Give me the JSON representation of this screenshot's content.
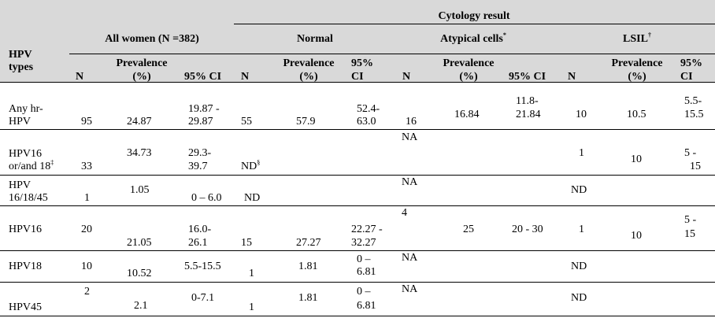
{
  "table": {
    "cytology_header": "Cytology result",
    "row_header": [
      "HPV",
      "types"
    ],
    "groups": {
      "all": "All women (N =382)",
      "normal": "Normal",
      "atypical": "Atypical cells",
      "atypical_mark": "*",
      "lsil": "LSIL",
      "lsil_mark": "†"
    },
    "cols": {
      "n": "N",
      "prev1": "Prevalence",
      "prev2": "(%)",
      "ci_full": "95% CI",
      "ci1": "95%",
      "ci2": "CI"
    },
    "rows": [
      {
        "type": [
          "Any hr-",
          "HPV"
        ],
        "all_n": "95",
        "all_prev": "24.87",
        "all_ci": [
          "19.87 -",
          "29.87"
        ],
        "nor_n": "55",
        "nor_prev": "57.9",
        "nor_ci": [
          "52.4-",
          "63.0"
        ],
        "aty_n": "16",
        "aty_prev": "16.84",
        "aty_ci": [
          "11.8-",
          "21.84"
        ],
        "lsil_n": "10",
        "lsil_prev": "10.5",
        "lsil_ci": [
          "5.5-",
          "15.5"
        ]
      },
      {
        "type": [
          "HPV16",
          "or/and 18"
        ],
        "type_mark": "‡",
        "all_n": "33",
        "all_prev": "34.73",
        "all_ci": [
          "29.3-",
          "39.7"
        ],
        "nor_n": "ND",
        "nor_mark": "§",
        "aty_n": "NA",
        "lsil_n": "1",
        "lsil_prev": "10",
        "lsil_ci": [
          "5 -",
          "15"
        ]
      },
      {
        "type": [
          "HPV",
          "16/18/45"
        ],
        "all_n": "1",
        "all_prev": "1.05",
        "all_ci": "0 – 6.0",
        "nor_n": "ND",
        "aty_n": "NA",
        "lsil_n": "ND"
      },
      {
        "type": "HPV16",
        "all_n": "20",
        "all_prev": "21.05",
        "all_ci": [
          "16.0-",
          "26.1"
        ],
        "nor_n": "15",
        "nor_prev": "27.27",
        "nor_ci": [
          "22.27 -",
          "32.27"
        ],
        "aty_n": "4",
        "aty_prev": "25",
        "aty_ci": "20 - 30",
        "lsil_n": "1",
        "lsil_prev": "10",
        "lsil_ci": [
          "5 -",
          "15"
        ]
      },
      {
        "type": "HPV18",
        "all_n": "10",
        "all_prev": "10.52",
        "all_ci": "5.5-15.5",
        "nor_n": "1",
        "nor_prev": "1.81",
        "nor_ci": [
          "0 –",
          "6.81"
        ],
        "aty_n": "NA",
        "lsil_n": "ND"
      },
      {
        "type": "HPV45",
        "all_n": "2",
        "all_prev": "2.1",
        "all_ci": "0-7.1",
        "nor_n": "1",
        "nor_prev": "1.81",
        "nor_ci": [
          "0 –",
          "6.81"
        ],
        "aty_n": "NA",
        "lsil_n": "ND"
      }
    ]
  }
}
